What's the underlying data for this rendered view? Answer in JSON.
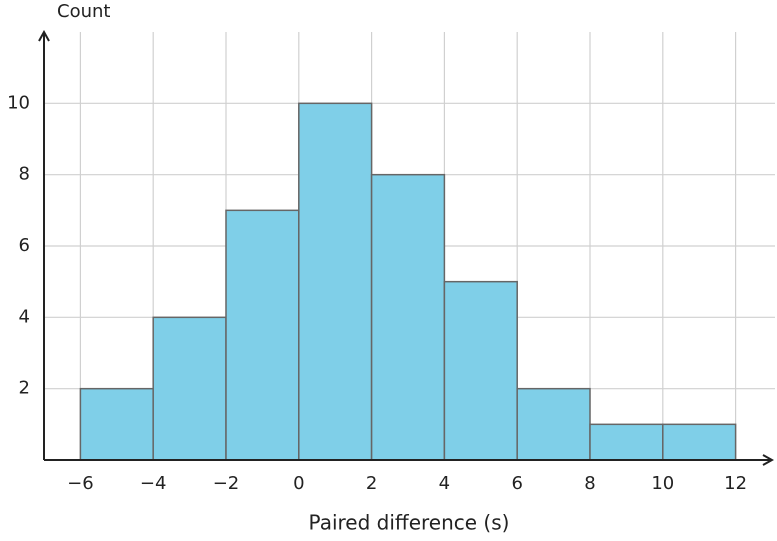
{
  "chart_data": {
    "type": "histogram",
    "x_label": "Paired difference (s)",
    "y_label": "Count",
    "bins": [
      -6,
      -4,
      -2,
      0,
      2,
      4,
      6,
      8,
      10,
      12
    ],
    "values": [
      2,
      4,
      7,
      10,
      8,
      5,
      2,
      1,
      1
    ],
    "color": "#7fcfe8",
    "xlim": [
      -7,
      13
    ],
    "ylim": [
      0,
      12
    ],
    "xticks": [
      {
        "value": -6,
        "label": "−6"
      },
      {
        "value": -4,
        "label": "−4"
      },
      {
        "value": -2,
        "label": "−2"
      },
      0,
      2,
      4,
      6,
      8,
      10,
      12
    ],
    "yticks": [
      2,
      4,
      6,
      8,
      10
    ],
    "grid": true
  }
}
